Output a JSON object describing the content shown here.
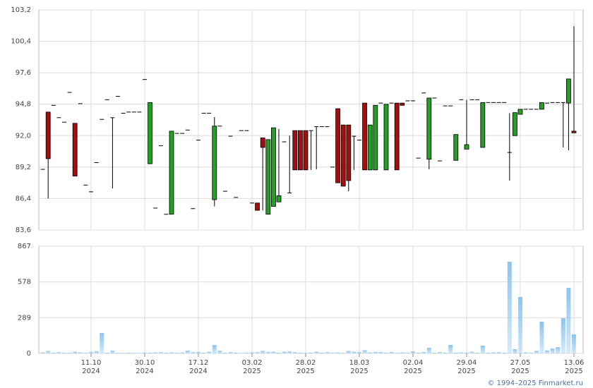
{
  "chart_data": {
    "type": "candlestick",
    "categories": [
      null,
      null,
      null,
      null,
      null,
      null,
      null,
      null,
      null,
      {
        "day": "11.10",
        "year": "2024"
      },
      null,
      null,
      null,
      null,
      null,
      null,
      null,
      null,
      null,
      {
        "day": "30.10",
        "year": "2024"
      },
      null,
      null,
      null,
      null,
      null,
      null,
      null,
      null,
      null,
      {
        "day": "17.12",
        "year": "2024"
      },
      null,
      null,
      null,
      null,
      null,
      null,
      null,
      null,
      null,
      {
        "day": "03.02",
        "year": "2025"
      },
      null,
      null,
      null,
      null,
      null,
      null,
      null,
      null,
      null,
      {
        "day": "28.02",
        "year": "2025"
      },
      null,
      null,
      null,
      null,
      null,
      null,
      null,
      null,
      null,
      {
        "day": "18.03",
        "year": "2025"
      },
      null,
      null,
      null,
      null,
      null,
      null,
      null,
      null,
      null,
      {
        "day": "02.04",
        "year": "2025"
      },
      null,
      null,
      null,
      null,
      null,
      null,
      null,
      null,
      null,
      {
        "day": "29.04",
        "year": "2025"
      },
      null,
      null,
      null,
      null,
      null,
      null,
      null,
      null,
      null,
      {
        "day": "27.05",
        "year": "2025"
      },
      null,
      null,
      null,
      null,
      null,
      null,
      null,
      null,
      null,
      {
        "day": "13.06",
        "year": "2025"
      }
    ],
    "open": [
      89.0,
      94.1,
      94.7,
      93.6,
      93.2,
      95.85,
      93.1,
      94.85,
      87.6,
      87.0,
      89.6,
      93.45,
      95.2,
      93.6,
      95.5,
      94.0,
      94.1,
      94.1,
      94.1,
      97.0,
      89.5,
      85.55,
      91.1,
      85.0,
      85.0,
      92.2,
      92.2,
      92.5,
      85.5,
      91.6,
      94.0,
      94.0,
      86.3,
      92.85,
      87.05,
      91.95,
      86.5,
      92.45,
      92.45,
      86.0,
      86.0,
      91.8,
      85.0,
      85.7,
      86.1,
      91.45,
      86.9,
      92.45,
      92.45,
      92.45,
      92.45,
      92.8,
      92.8,
      92.8,
      89.2,
      94.4,
      92.95,
      92.95,
      91.95,
      91.6,
      94.9,
      88.95,
      88.95,
      94.9,
      88.95,
      94.9,
      94.9,
      94.9,
      95.1,
      95.1,
      90.0,
      95.8,
      89.9,
      95.35,
      89.75,
      94.65,
      94.65,
      89.8,
      95.2,
      90.8,
      95.2,
      95.2,
      90.95,
      94.95,
      94.95,
      94.95,
      94.95,
      90.5,
      92.0,
      93.9,
      94.35,
      94.35,
      94.35,
      94.35,
      94.9,
      94.95,
      94.95,
      94.95,
      94.9,
      92.4
    ],
    "high": [
      89.0,
      94.1,
      94.7,
      93.6,
      93.2,
      95.85,
      93.1,
      94.85,
      87.6,
      87.0,
      89.6,
      93.45,
      95.2,
      93.6,
      95.5,
      94.0,
      94.1,
      94.1,
      94.1,
      97.0,
      94.95,
      85.55,
      91.1,
      85.0,
      92.4,
      92.2,
      92.2,
      92.5,
      85.5,
      91.6,
      94.0,
      94.0,
      93.65,
      92.85,
      87.05,
      91.95,
      86.5,
      92.45,
      92.45,
      86.0,
      86.0,
      91.8,
      91.65,
      92.7,
      92.6,
      91.45,
      92.0,
      92.45,
      92.45,
      92.45,
      92.45,
      92.8,
      92.8,
      92.8,
      89.2,
      94.4,
      92.95,
      92.95,
      91.95,
      91.6,
      94.9,
      92.95,
      94.7,
      94.9,
      94.8,
      94.9,
      94.9,
      94.9,
      95.1,
      95.1,
      90.0,
      95.8,
      95.35,
      95.35,
      89.75,
      94.65,
      94.65,
      92.1,
      95.2,
      95.2,
      95.2,
      95.2,
      94.95,
      94.95,
      94.95,
      94.95,
      94.95,
      94.0,
      94.05,
      94.35,
      94.35,
      94.35,
      94.35,
      94.95,
      94.9,
      94.95,
      94.95,
      94.95,
      97.05,
      101.75
    ],
    "low": [
      89.0,
      86.4,
      94.7,
      93.6,
      93.2,
      95.85,
      88.4,
      94.85,
      87.6,
      87.0,
      89.6,
      93.45,
      95.2,
      87.3,
      95.5,
      94.0,
      94.1,
      94.1,
      94.1,
      97.0,
      89.5,
      85.55,
      91.1,
      85.0,
      85.0,
      92.2,
      92.2,
      92.5,
      85.5,
      91.6,
      94.0,
      94.0,
      85.7,
      92.85,
      87.05,
      91.95,
      86.5,
      92.45,
      92.45,
      86.0,
      85.35,
      85.35,
      85.0,
      85.7,
      86.1,
      91.45,
      86.9,
      88.95,
      88.95,
      88.95,
      88.95,
      89.0,
      92.8,
      92.8,
      89.2,
      87.8,
      87.5,
      87.05,
      88.95,
      91.6,
      88.95,
      88.95,
      88.95,
      94.9,
      88.95,
      94.9,
      88.95,
      94.7,
      95.1,
      95.1,
      90.0,
      95.8,
      89.0,
      95.35,
      89.75,
      94.65,
      94.65,
      89.8,
      95.2,
      90.8,
      95.2,
      95.2,
      90.95,
      94.95,
      94.95,
      94.95,
      94.95,
      88.0,
      92.0,
      93.9,
      94.35,
      94.35,
      94.35,
      94.35,
      94.9,
      94.95,
      94.95,
      90.95,
      90.7,
      92.25
    ],
    "close": [
      89.0,
      89.95,
      94.7,
      93.6,
      93.2,
      95.85,
      88.4,
      94.85,
      87.6,
      87.0,
      89.6,
      93.45,
      95.2,
      93.6,
      95.5,
      94.0,
      94.1,
      94.1,
      94.1,
      97.0,
      94.95,
      85.55,
      91.1,
      85.0,
      92.4,
      92.2,
      92.2,
      92.5,
      85.5,
      91.6,
      94.0,
      94.0,
      92.85,
      92.85,
      87.05,
      91.95,
      86.5,
      92.45,
      92.45,
      86.0,
      85.35,
      90.95,
      91.65,
      92.7,
      86.65,
      91.45,
      86.9,
      88.95,
      88.95,
      88.95,
      92.45,
      92.8,
      92.8,
      92.8,
      89.2,
      87.8,
      87.5,
      88.0,
      91.95,
      91.6,
      88.95,
      92.95,
      94.7,
      94.9,
      94.8,
      94.9,
      88.95,
      94.7,
      95.1,
      95.1,
      90.0,
      95.8,
      95.35,
      95.35,
      89.75,
      94.65,
      94.65,
      92.1,
      95.2,
      91.2,
      95.2,
      95.2,
      94.95,
      94.95,
      94.95,
      94.95,
      94.95,
      90.5,
      94.05,
      94.35,
      94.35,
      94.35,
      94.35,
      94.95,
      94.9,
      94.95,
      94.95,
      94.95,
      97.05,
      92.25
    ],
    "volume": [
      8,
      20,
      6,
      10,
      5,
      6,
      14,
      8,
      4,
      12,
      18,
      165,
      6,
      22,
      5,
      4,
      6,
      4,
      4,
      5,
      6,
      8,
      10,
      6,
      8,
      5,
      8,
      22,
      10,
      12,
      6,
      14,
      68,
      22,
      6,
      10,
      6,
      4,
      6,
      8,
      10,
      20,
      12,
      14,
      6,
      14,
      16,
      10,
      6,
      4,
      6,
      14,
      6,
      10,
      6,
      8,
      4,
      20,
      14,
      10,
      26,
      8,
      12,
      12,
      6,
      12,
      4,
      8,
      6,
      16,
      6,
      12,
      45,
      6,
      10,
      6,
      68,
      6,
      8,
      6,
      14,
      6,
      63,
      6,
      8,
      10,
      6,
      741,
      34,
      456,
      8,
      6,
      20,
      257,
      24,
      40,
      51,
      285,
      530,
      154
    ],
    "up_color": "#22a022",
    "down_color": "#a01010",
    "volume_color": "#8cc4ee",
    "ylim": [
      83.6,
      103.2
    ],
    "yticks": [
      {
        "value": 83.6,
        "label": "83,6"
      },
      {
        "value": 86.4,
        "label": "86,4"
      },
      {
        "value": 89.2,
        "label": "89,2"
      },
      {
        "value": 92.0,
        "label": "92,0"
      },
      {
        "value": 94.8,
        "label": "94,8"
      },
      {
        "value": 97.6,
        "label": "97,6"
      },
      {
        "value": 100.4,
        "label": "100,4"
      },
      {
        "value": 103.2,
        "label": "103,2"
      }
    ],
    "volume_lim": [
      0,
      867
    ],
    "volume_ticks": [
      0,
      289,
      578,
      867
    ],
    "grid": true,
    "footer": "© 1994–2025 Finmarket.ru"
  }
}
